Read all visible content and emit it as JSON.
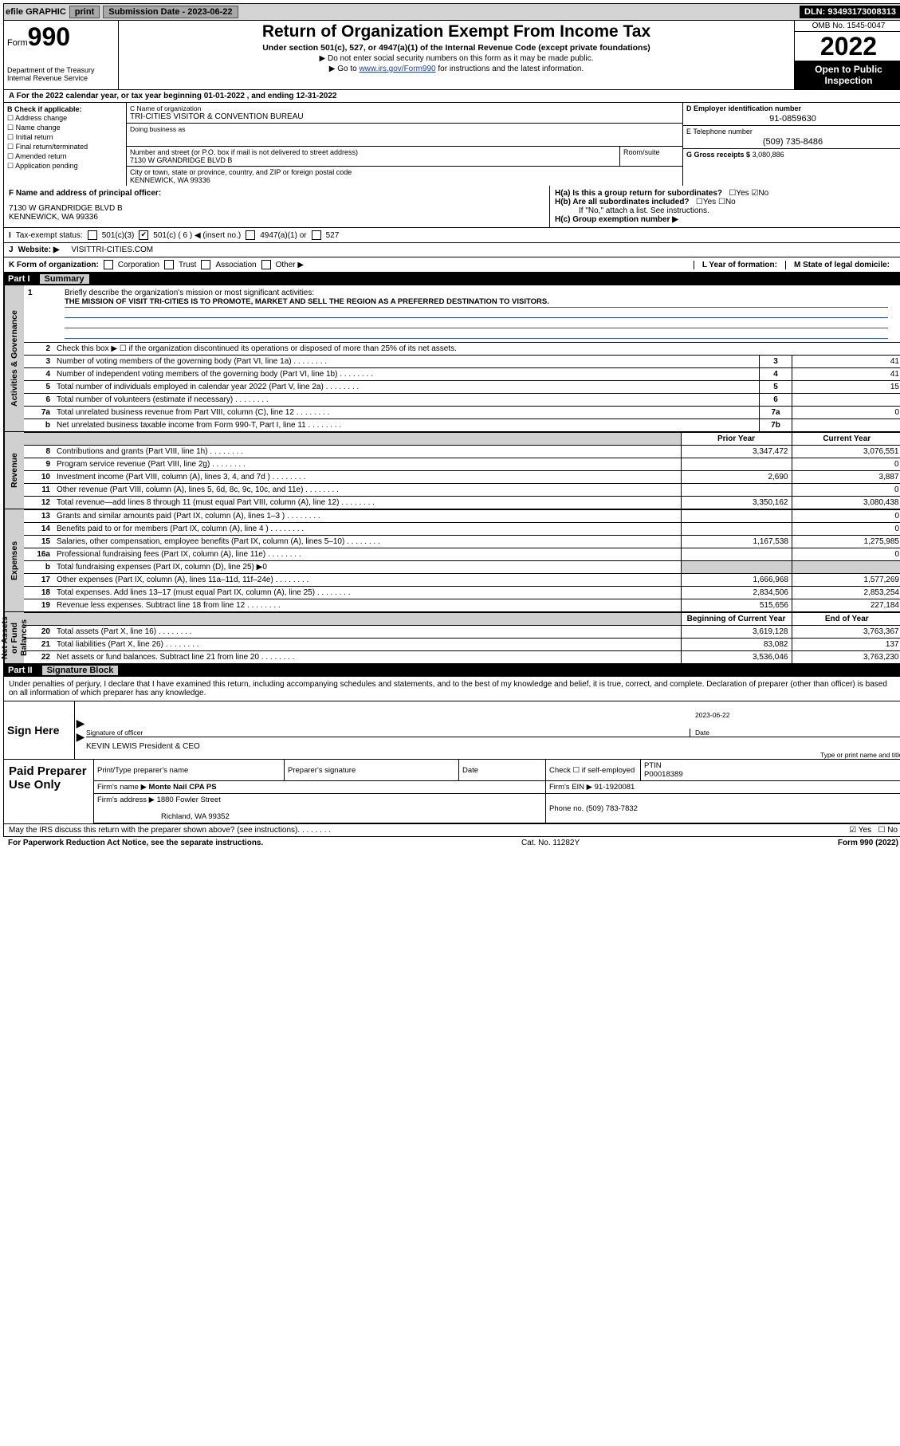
{
  "topbar": {
    "efile": "efile GRAPHIC",
    "print": "print",
    "submission_label": "Submission Date - 2023-06-22",
    "dln": "DLN: 93493173008313"
  },
  "header": {
    "form_word": "Form",
    "form_num": "990",
    "dept": "Department of the Treasury\nInternal Revenue Service",
    "title": "Return of Organization Exempt From Income Tax",
    "subtitle": "Under section 501(c), 527, or 4947(a)(1) of the Internal Revenue Code (except private foundations)",
    "arrow1": "▶ Do not enter social security numbers on this form as it may be made public.",
    "arrow2_pre": "▶ Go to ",
    "arrow2_link": "www.irs.gov/Form990",
    "arrow2_post": " for instructions and the latest information.",
    "omb": "OMB No. 1545-0047",
    "year": "2022",
    "open": "Open to Public Inspection"
  },
  "row_a": "A For the 2022 calendar year, or tax year beginning 01-01-2022   , and ending 12-31-2022",
  "col_b": {
    "lead": "B Check if applicable:",
    "items": [
      "Address change",
      "Name change",
      "Initial return",
      "Final return/terminated",
      "Amended return",
      "Application pending"
    ]
  },
  "c": {
    "name_lbl": "C Name of organization",
    "name_val": "TRI-CITIES VISITOR & CONVENTION BUREAU",
    "dba_lbl": "Doing business as",
    "addr_lbl": "Number and street (or P.O. box if mail is not delivered to street address)",
    "room_lbl": "Room/suite",
    "addr_val": "7130 W GRANDRIDGE BLVD B",
    "city_lbl": "City or town, state or province, country, and ZIP or foreign postal code",
    "city_val": "KENNEWICK, WA  99336"
  },
  "d": {
    "lbl": "D Employer identification number",
    "val": "91-0859630"
  },
  "e": {
    "lbl": "E Telephone number",
    "val": "(509) 735-8486"
  },
  "g": {
    "lbl": "G Gross receipts $",
    "val": "3,080,886"
  },
  "f": {
    "lbl": "F Name and address of principal officer:",
    "addr1": "7130 W GRANDRIDGE BLVD B",
    "addr2": "KENNEWICK, WA  99336"
  },
  "h": {
    "a_lbl": "H(a)  Is this a group return for subordinates?",
    "a_yes": "Yes",
    "a_no": "No",
    "b_lbl": "H(b)  Are all subordinates included?",
    "b_note": "If \"No,\" attach a list. See instructions.",
    "c_lbl": "H(c)  Group exemption number ▶"
  },
  "i": {
    "lead": "Tax-exempt status:",
    "opt1": "501(c)(3)",
    "opt2": "501(c) ( 6 ) ◀ (insert no.)",
    "opt3": "4947(a)(1) or",
    "opt4": "527"
  },
  "j": {
    "lead": "Website: ▶",
    "val": "VISITTRI-CITIES.COM"
  },
  "k": {
    "lead": "K Form of organization:",
    "opts": [
      "Corporation",
      "Trust",
      "Association",
      "Other ▶"
    ],
    "l_lbl": "L Year of formation:",
    "m_lbl": "M State of legal domicile:"
  },
  "part1": {
    "pt": "Part I",
    "pn": "Summary"
  },
  "mission": {
    "num": "1",
    "lead": "Briefly describe the organization's mission or most significant activities:",
    "text": "THE MISSION OF VISIT TRI-CITIES IS TO PROMOTE, MARKET AND SELL THE REGION AS A PREFERRED DESTINATION TO VISITORS."
  },
  "act_gov": {
    "label": "Activities & Governance",
    "rows": [
      {
        "n": "2",
        "d": "Check this box ▶ ☐  if the organization discontinued its operations or disposed of more than 25% of its net assets."
      },
      {
        "n": "3",
        "d": "Number of voting members of the governing body (Part VI, line 1a)",
        "rn": "3",
        "rv": "41"
      },
      {
        "n": "4",
        "d": "Number of independent voting members of the governing body (Part VI, line 1b)",
        "rn": "4",
        "rv": "41"
      },
      {
        "n": "5",
        "d": "Total number of individuals employed in calendar year 2022 (Part V, line 2a)",
        "rn": "5",
        "rv": "15"
      },
      {
        "n": "6",
        "d": "Total number of volunteers (estimate if necessary)",
        "rn": "6",
        "rv": ""
      },
      {
        "n": "7a",
        "d": "Total unrelated business revenue from Part VIII, column (C), line 12",
        "rn": "7a",
        "rv": "0"
      },
      {
        "n": "b",
        "d": "Net unrelated business taxable income from Form 990-T, Part I, line 11",
        "rn": "7b",
        "rv": ""
      }
    ]
  },
  "py_cy_head": {
    "py": "Prior Year",
    "cy": "Current Year"
  },
  "revenue": {
    "label": "Revenue",
    "rows": [
      {
        "n": "8",
        "d": "Contributions and grants (Part VIII, line 1h)",
        "py": "3,347,472",
        "cy": "3,076,551"
      },
      {
        "n": "9",
        "d": "Program service revenue (Part VIII, line 2g)",
        "py": "",
        "cy": "0"
      },
      {
        "n": "10",
        "d": "Investment income (Part VIII, column (A), lines 3, 4, and 7d )",
        "py": "2,690",
        "cy": "3,887"
      },
      {
        "n": "11",
        "d": "Other revenue (Part VIII, column (A), lines 5, 6d, 8c, 9c, 10c, and 11e)",
        "py": "",
        "cy": "0"
      },
      {
        "n": "12",
        "d": "Total revenue—add lines 8 through 11 (must equal Part VIII, column (A), line 12)",
        "py": "3,350,162",
        "cy": "3,080,438"
      }
    ]
  },
  "expenses": {
    "label": "Expenses",
    "rows": [
      {
        "n": "13",
        "d": "Grants and similar amounts paid (Part IX, column (A), lines 1–3 )",
        "py": "",
        "cy": "0"
      },
      {
        "n": "14",
        "d": "Benefits paid to or for members (Part IX, column (A), line 4 )",
        "py": "",
        "cy": "0"
      },
      {
        "n": "15",
        "d": "Salaries, other compensation, employee benefits (Part IX, column (A), lines 5–10)",
        "py": "1,167,538",
        "cy": "1,275,985"
      },
      {
        "n": "16a",
        "d": "Professional fundraising fees (Part IX, column (A), line 11e)",
        "py": "",
        "cy": "0"
      },
      {
        "n": "b",
        "d": "Total fundraising expenses (Part IX, column (D), line 25) ▶0",
        "shade": true
      },
      {
        "n": "17",
        "d": "Other expenses (Part IX, column (A), lines 11a–11d, 11f–24e)",
        "py": "1,666,968",
        "cy": "1,577,269"
      },
      {
        "n": "18",
        "d": "Total expenses. Add lines 13–17 (must equal Part IX, column (A), line 25)",
        "py": "2,834,506",
        "cy": "2,853,254"
      },
      {
        "n": "19",
        "d": "Revenue less expenses. Subtract line 18 from line 12",
        "py": "515,656",
        "cy": "227,184"
      }
    ]
  },
  "netassets": {
    "label": "Net Assets or Fund Balances",
    "head_py": "Beginning of Current Year",
    "head_cy": "End of Year",
    "rows": [
      {
        "n": "20",
        "d": "Total assets (Part X, line 16)",
        "py": "3,619,128",
        "cy": "3,763,367"
      },
      {
        "n": "21",
        "d": "Total liabilities (Part X, line 26)",
        "py": "83,082",
        "cy": "137"
      },
      {
        "n": "22",
        "d": "Net assets or fund balances. Subtract line 21 from line 20",
        "py": "3,536,046",
        "cy": "3,763,230"
      }
    ]
  },
  "part2": {
    "pt": "Part II",
    "pn": "Signature Block"
  },
  "sig_intro": "Under penalties of perjury, I declare that I have examined this return, including accompanying schedules and statements, and to the best of my knowledge and belief, it is true, correct, and complete. Declaration of preparer (other than officer) is based on all information of which preparer has any knowledge.",
  "sign": {
    "left": "Sign Here",
    "sig_lbl": "Signature of officer",
    "date_lbl": "Date",
    "date_val": "2023-06-22",
    "name_val": "KEVIN LEWIS  President & CEO",
    "name_lbl": "Type or print name and title"
  },
  "paid": {
    "left": "Paid Preparer Use Only",
    "r1": {
      "c1": "Print/Type preparer's name",
      "c2": "Preparer's signature",
      "c3": "Date",
      "c4a": "Check ☐ if self-employed",
      "c5a": "PTIN",
      "c5b": "P00018389"
    },
    "r2": {
      "c1": "Firm's name    ▶",
      "c1v": "Monte Nail CPA PS",
      "c2": "Firm's EIN ▶",
      "c2v": "91-1920081"
    },
    "r3": {
      "c1": "Firm's address ▶",
      "c1v": "1880 Fowler Street",
      "c1v2": "Richland, WA  99352",
      "c2": "Phone no.",
      "c2v": "(509) 783-7832"
    }
  },
  "bottom": {
    "q": "May the IRS discuss this return with the preparer shown above? (see instructions)",
    "yes": "Yes",
    "no": "No"
  },
  "footer": {
    "l": "For Paperwork Reduction Act Notice, see the separate instructions.",
    "c": "Cat. No. 11282Y",
    "r": "Form 990 (2022)"
  }
}
